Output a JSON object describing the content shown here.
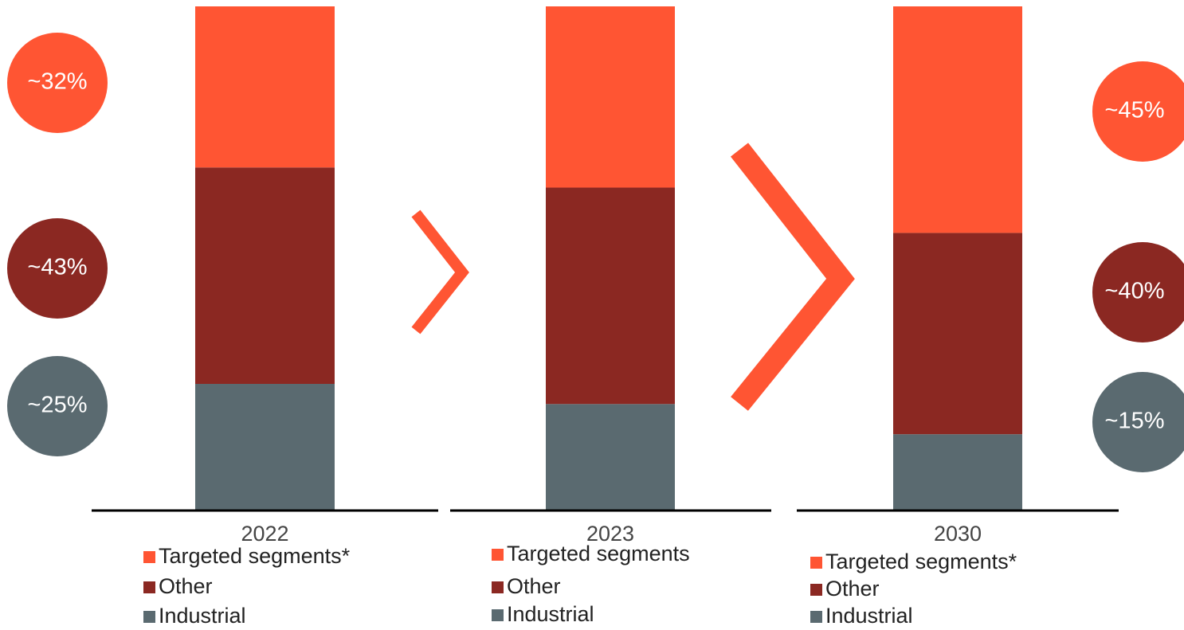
{
  "chart_data": [
    {
      "type": "bar",
      "categories": [
        "2022"
      ],
      "ylim": [
        0,
        100
      ],
      "series": [
        {
          "name": "Targeted segments*",
          "color": "#ff5533",
          "values": [
            32
          ],
          "value_labels": [
            "~32%"
          ]
        },
        {
          "name": "Other",
          "color": "#8b2822",
          "values": [
            43
          ],
          "value_labels": [
            "~43%"
          ]
        },
        {
          "name": "Industrial",
          "color": "#5a6a70",
          "values": [
            25
          ],
          "value_labels": [
            "~25%"
          ]
        }
      ]
    },
    {
      "type": "bar",
      "categories": [
        "2023"
      ],
      "ylim": [
        0,
        100
      ],
      "series": [
        {
          "name": "Targeted segments",
          "color": "#ff5533",
          "values": [
            36
          ]
        },
        {
          "name": "Other",
          "color": "#8b2822",
          "values": [
            43
          ]
        },
        {
          "name": "Industrial",
          "color": "#5a6a70",
          "values": [
            21
          ]
        }
      ]
    },
    {
      "type": "bar",
      "categories": [
        "2030"
      ],
      "ylim": [
        0,
        100
      ],
      "series": [
        {
          "name": "Targeted segments*",
          "color": "#ff5533",
          "values": [
            45
          ],
          "value_labels": [
            "~45%"
          ]
        },
        {
          "name": "Other",
          "color": "#8b2822",
          "values": [
            40
          ],
          "value_labels": [
            "~40%"
          ]
        },
        {
          "name": "Industrial",
          "color": "#5a6a70",
          "values": [
            15
          ],
          "value_labels": [
            "~15%"
          ]
        }
      ]
    }
  ]
}
